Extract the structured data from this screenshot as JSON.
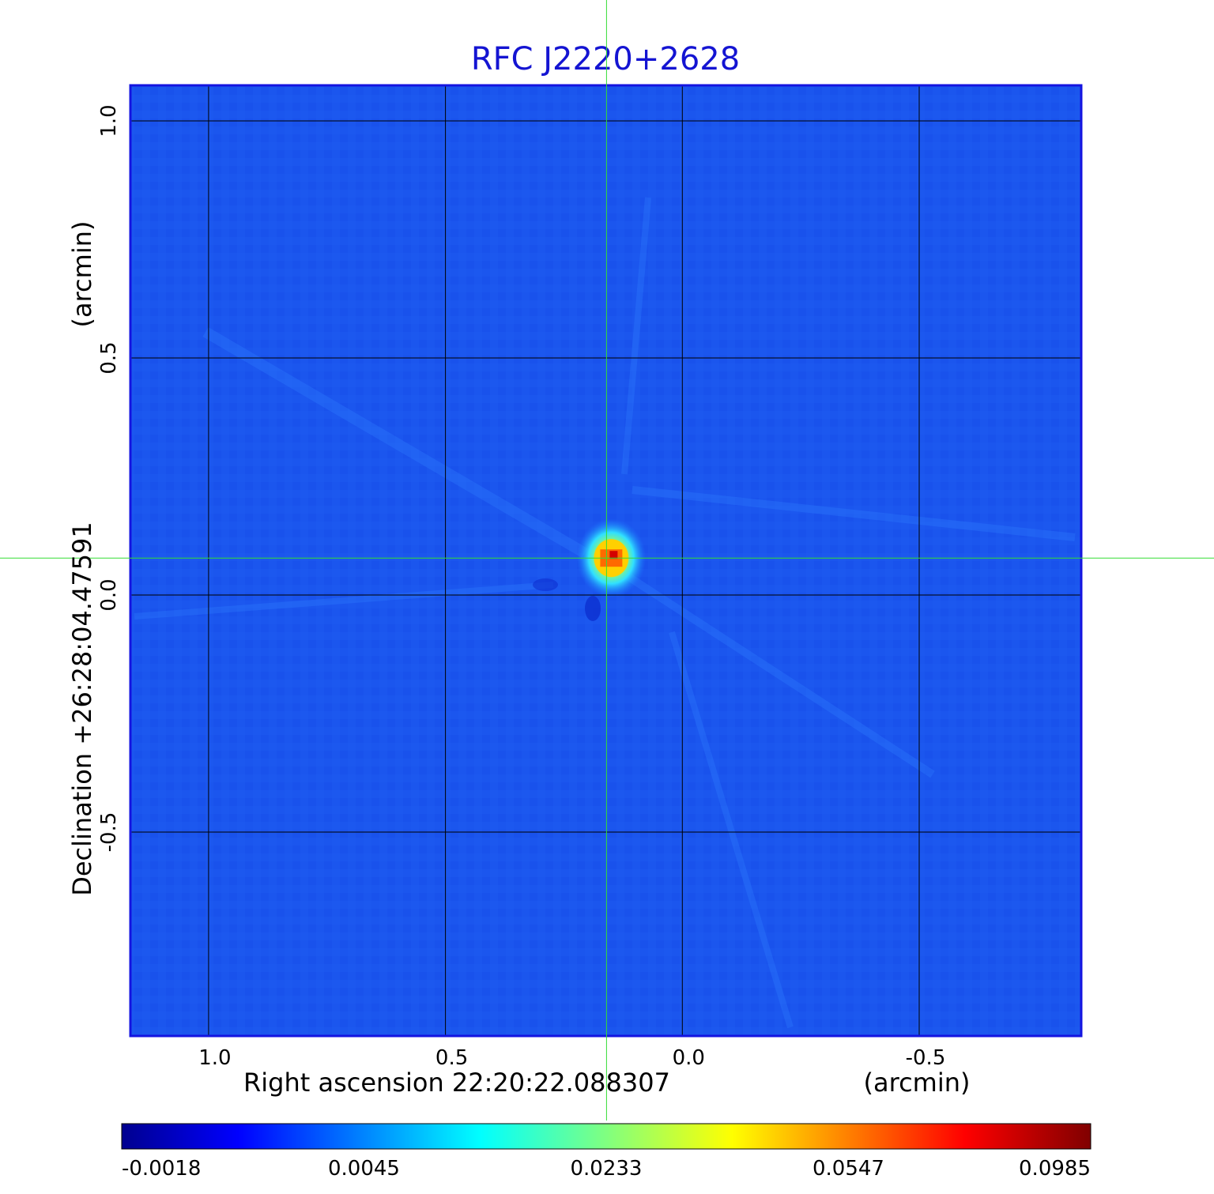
{
  "chart_data": {
    "type": "heatmap",
    "title": "RFC J2220+2628",
    "xlabel": "Right ascension  22:20:22.088307",
    "xunit": "(arcmin)",
    "ylabel": "Declination  +26:28:04.47591",
    "yunit": "(arcmin)",
    "x_ticks": [
      1.0,
      0.5,
      0.0,
      -0.5
    ],
    "x_tick_labels": [
      "1.0",
      "0.5",
      "0.0",
      "-0.5"
    ],
    "y_ticks": [
      1.0,
      0.5,
      0.0,
      -0.5
    ],
    "y_tick_labels": [
      "1.0",
      "0.5",
      "0.0",
      "-0.5"
    ],
    "xlim": [
      1.165,
      -0.842
    ],
    "ylim": [
      -0.93,
      1.075
    ],
    "grid": true,
    "crosshair": {
      "x": 0.16,
      "y": 0.078
    },
    "source": {
      "x": 0.15,
      "y": 0.078,
      "peak": 0.0985
    },
    "colorbar": {
      "position": "bottom",
      "tick_labels": [
        "-0.0018",
        "0.0045",
        "0.0233",
        "0.0547",
        "0.0985"
      ],
      "min": -0.0018,
      "max": 0.0985,
      "colormap": "jet"
    },
    "colors": {
      "title": "#1414d2",
      "background_map": "#1a55ee",
      "crosshair": "#33dd33",
      "grid": "#000000"
    }
  }
}
